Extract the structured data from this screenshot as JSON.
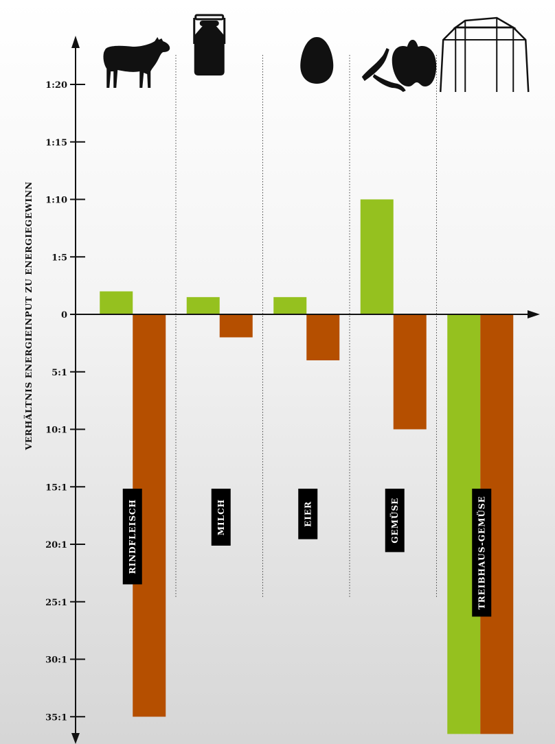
{
  "chart_data": {
    "type": "bar",
    "ylabel": "VERHÄLTNIS ENERGIEINPUT ZU ENERGIEGEWINN",
    "y_ticks": [
      "1:20",
      "1:15",
      "1:10",
      "1:5",
      "0",
      "5:1",
      "10:1",
      "15:1",
      "20:1",
      "25:1",
      "30:1",
      "35:1"
    ],
    "categories": [
      "RINDFLEISCH",
      "MILCH",
      "EIER",
      "GEMÜSE",
      "TREIBHAUS-GEMÜSE"
    ],
    "icons": [
      "cow-icon",
      "milk-can-icon",
      "egg-icon",
      "vegetables-icon",
      "greenhouse-vegetables-icon"
    ],
    "series": [
      {
        "color": "#95c11f",
        "values": [
          2,
          1.5,
          1.5,
          10,
          -36.5
        ]
      },
      {
        "color": "#b54f00",
        "values": [
          -35,
          -2,
          -4,
          -10,
          -36.5
        ]
      }
    ],
    "ylim": [
      -36.5,
      24
    ],
    "grid": false
  }
}
